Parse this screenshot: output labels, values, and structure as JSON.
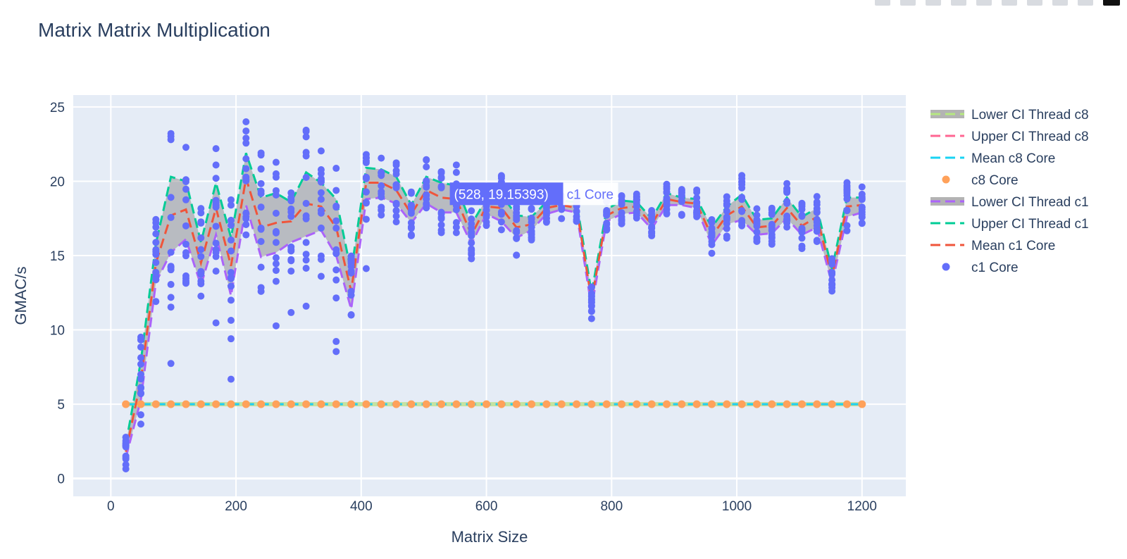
{
  "toolbar": {
    "icons": [
      "camera-icon",
      "zoom-icon",
      "pan-icon",
      "box-select-icon",
      "lasso-icon",
      "zoom-in-icon",
      "zoom-out-icon",
      "autoscale-icon",
      "reset-axes-icon",
      "plotly-logo-icon"
    ]
  },
  "hover": {
    "text": "(528, 19.15393)",
    "name": "c1 Core",
    "x": 528,
    "y": 19.15393
  },
  "chart_data": {
    "type": "scatter",
    "title": "Matrix Matrix Multiplication",
    "xlabel": "Matrix Size",
    "ylabel": "GMAC/s",
    "xlim": [
      -60,
      1270
    ],
    "ylim": [
      -1.2,
      25.8
    ],
    "xticks": [
      0,
      200,
      400,
      600,
      800,
      1000,
      1200
    ],
    "yticks": [
      0,
      5,
      10,
      15,
      20,
      25
    ],
    "grid": true,
    "legend_position": "right",
    "plot_bgcolor": "#e5ecf6",
    "x": [
      24,
      48,
      72,
      96,
      120,
      144,
      168,
      192,
      216,
      240,
      264,
      288,
      312,
      336,
      360,
      384,
      408,
      432,
      456,
      480,
      504,
      528,
      552,
      576,
      600,
      624,
      648,
      672,
      696,
      720,
      744,
      768,
      792,
      816,
      840,
      864,
      888,
      912,
      936,
      960,
      984,
      1008,
      1032,
      1056,
      1080,
      1104,
      1128,
      1152,
      1176,
      1200
    ],
    "series": [
      {
        "name": "Lower CI Thread c8",
        "mode": "line",
        "color": "#b6e880",
        "values": [
          5,
          5,
          5,
          5,
          5,
          5,
          5,
          5,
          5,
          5,
          5,
          5,
          5,
          5,
          5,
          5,
          5,
          5,
          5,
          5,
          5,
          5,
          5,
          5,
          5,
          5,
          5,
          5,
          5,
          5,
          5,
          5,
          5,
          5,
          5,
          5,
          5,
          5,
          5,
          5,
          5,
          5,
          5,
          5,
          5,
          5,
          5,
          5,
          5,
          5
        ]
      },
      {
        "name": "Upper CI Thread c8",
        "mode": "line",
        "color": "#ff6692",
        "values": [
          5,
          5,
          5,
          5,
          5,
          5,
          5,
          5,
          5,
          5,
          5,
          5,
          5,
          5,
          5,
          5,
          5,
          5,
          5,
          5,
          5,
          5,
          5,
          5,
          5,
          5,
          5,
          5,
          5,
          5,
          5,
          5,
          5,
          5,
          5,
          5,
          5,
          5,
          5,
          5,
          5,
          5,
          5,
          5,
          5,
          5,
          5,
          5,
          5,
          5
        ]
      },
      {
        "name": "Mean c8 Core",
        "mode": "line",
        "color": "#19d3f3",
        "values": [
          5,
          5,
          5,
          5,
          5,
          5,
          5,
          5,
          5,
          5,
          5,
          5,
          5,
          5,
          5,
          5,
          5,
          5,
          5,
          5,
          5,
          5,
          5,
          5,
          5,
          5,
          5,
          5,
          5,
          5,
          5,
          5,
          5,
          5,
          5,
          5,
          5,
          5,
          5,
          5,
          5,
          5,
          5,
          5,
          5,
          5,
          5,
          5,
          5,
          5
        ]
      },
      {
        "name": "c8 Core",
        "mode": "markers",
        "color": "#ffa15a",
        "values": [
          5,
          5,
          5,
          5,
          5,
          5,
          5,
          5,
          5,
          5,
          5,
          5,
          5,
          5,
          5,
          5,
          5,
          5,
          5,
          5,
          5,
          5,
          5,
          5,
          5,
          5,
          5,
          5,
          5,
          5,
          5,
          5,
          5,
          5,
          5,
          5,
          5,
          5,
          5,
          5,
          5,
          5,
          5,
          5,
          5,
          5,
          5,
          5,
          5,
          5
        ]
      },
      {
        "name": "Lower CI Thread c1",
        "mode": "line",
        "color": "#ab63fa",
        "values": [
          1.4,
          5.3,
          13.2,
          15.2,
          16.1,
          13.0,
          16.4,
          12.3,
          18.4,
          14.9,
          15.2,
          15.9,
          16.3,
          16.7,
          15.0,
          11.4,
          18.8,
          18.9,
          18.5,
          17.2,
          18.5,
          17.9,
          17.9,
          15.8,
          17.8,
          17.3,
          16.2,
          16.7,
          17.8,
          18.1,
          17.9,
          11.5,
          17.3,
          17.8,
          17.9,
          16.8,
          18.4,
          18.4,
          18.2,
          15.7,
          17.1,
          17.4,
          16.4,
          16.5,
          17.5,
          16.4,
          16.9,
          13.1,
          17.6,
          17.9
        ]
      },
      {
        "name": "Upper CI Thread c1",
        "mode": "line",
        "color": "#00cc96",
        "values": [
          2.3,
          7.9,
          15.8,
          20.3,
          20.0,
          15.9,
          19.9,
          16.2,
          21.9,
          18.9,
          19.2,
          18.6,
          20.6,
          19.9,
          18.8,
          13.9,
          20.9,
          20.8,
          20.3,
          18.4,
          20.3,
          19.9,
          19.7,
          17.1,
          18.8,
          19.1,
          17.7,
          17.6,
          18.6,
          18.7,
          18.6,
          12.5,
          18.1,
          18.7,
          18.6,
          17.5,
          19.2,
          18.9,
          18.8,
          16.9,
          18.3,
          19.1,
          17.4,
          17.5,
          18.9,
          17.6,
          18.2,
          14.1,
          18.9,
          18.9
        ]
      },
      {
        "name": "Mean c1 Core",
        "mode": "line",
        "color": "#ef553b",
        "values": [
          1.8,
          6.6,
          14.5,
          17.7,
          18.1,
          14.5,
          18.2,
          14.3,
          20.2,
          16.9,
          17.2,
          17.3,
          18.5,
          18.3,
          16.9,
          12.6,
          19.9,
          19.9,
          19.4,
          17.8,
          19.4,
          18.9,
          18.8,
          16.4,
          18.3,
          18.2,
          16.9,
          17.1,
          18.2,
          18.4,
          18.2,
          12.0,
          17.7,
          18.2,
          18.3,
          17.1,
          18.8,
          18.6,
          18.5,
          16.3,
          17.7,
          18.3,
          16.9,
          17.0,
          18.2,
          17.0,
          17.6,
          13.6,
          18.3,
          18.4
        ]
      },
      {
        "name": "c1 Core",
        "mode": "markers",
        "color": "#636efa"
      }
    ]
  }
}
